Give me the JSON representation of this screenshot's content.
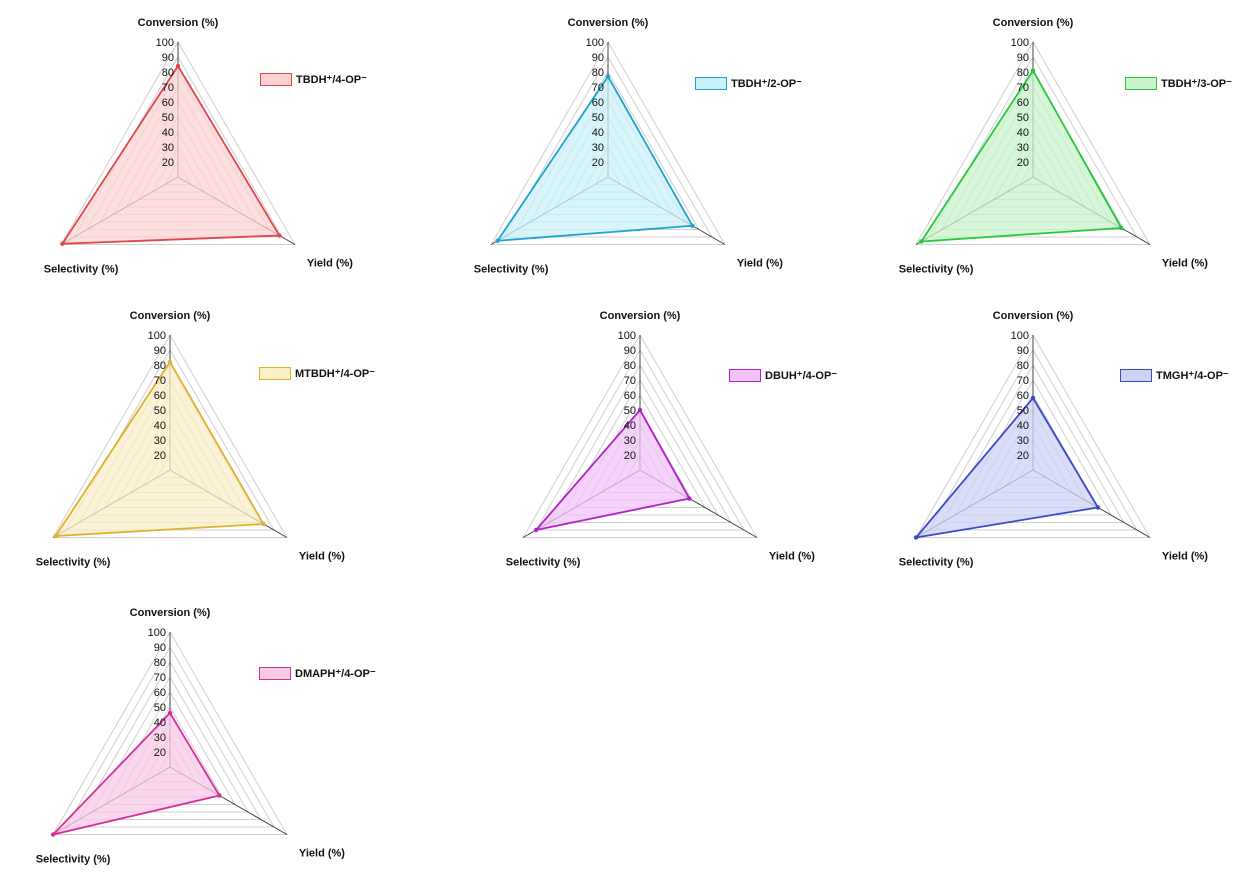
{
  "chart_data": [
    {
      "type": "radar",
      "axes": [
        "Conversion (%)",
        "Yield (%)",
        "Selectivity (%)"
      ],
      "r_ticks": [
        "20",
        "30",
        "40",
        "50",
        "60",
        "70",
        "80",
        "90",
        "100"
      ],
      "rlim": [
        10,
        100
      ],
      "legend": "TBDH⁺/4-OP⁻",
      "series": [
        {
          "name": "TBDH⁺/4-OP⁻",
          "values": [
            84,
            88,
            99
          ]
        }
      ],
      "color": "#e0474c",
      "fill": "#fbd3d3"
    },
    {
      "type": "radar",
      "axes": [
        "Conversion (%)",
        "Yield (%)",
        "Selectivity (%)"
      ],
      "r_ticks": [
        "20",
        "30",
        "40",
        "50",
        "60",
        "70",
        "80",
        "90",
        "100"
      ],
      "rlim": [
        10,
        100
      ],
      "legend": "TBDH⁺/2-OP⁻",
      "series": [
        {
          "name": "TBDH⁺/2-OP⁻",
          "values": [
            77,
            75,
            95
          ]
        }
      ],
      "color": "#1fa3cf",
      "fill": "#c9f1f8"
    },
    {
      "type": "radar",
      "axes": [
        "Conversion (%)",
        "Yield (%)",
        "Selectivity (%)"
      ],
      "r_ticks": [
        "20",
        "30",
        "40",
        "50",
        "60",
        "70",
        "80",
        "90",
        "100"
      ],
      "rlim": [
        10,
        100
      ],
      "legend": "TBDH⁺/3-OP⁻",
      "series": [
        {
          "name": "TBDH⁺/3-OP⁻",
          "values": [
            81,
            78,
            96
          ]
        }
      ],
      "color": "#27c93a",
      "fill": "#c8f3cb"
    },
    {
      "type": "radar",
      "axes": [
        "Conversion (%)",
        "Yield (%)",
        "Selectivity (%)"
      ],
      "r_ticks": [
        "20",
        "30",
        "40",
        "50",
        "60",
        "70",
        "80",
        "90",
        "100"
      ],
      "rlim": [
        10,
        100
      ],
      "legend": "MTBDH⁺/4-OP⁻",
      "series": [
        {
          "name": "MTBDH⁺/4-OP⁻",
          "values": [
            82,
            82,
            98
          ]
        }
      ],
      "color": "#e0b12e",
      "fill": "#fbefc8"
    },
    {
      "type": "radar",
      "axes": [
        "Conversion (%)",
        "Yield (%)",
        "Selectivity (%)"
      ],
      "r_ticks": [
        "20",
        "30",
        "40",
        "50",
        "60",
        "70",
        "80",
        "90",
        "100"
      ],
      "rlim": [
        10,
        100
      ],
      "legend": "DBUH⁺/4-OP⁻",
      "series": [
        {
          "name": "DBUH⁺/4-OP⁻",
          "values": [
            50,
            48,
            90
          ]
        }
      ],
      "color": "#b023c8",
      "fill": "#f0c3f7"
    },
    {
      "type": "radar",
      "axes": [
        "Conversion (%)",
        "Yield (%)",
        "Selectivity (%)"
      ],
      "r_ticks": [
        "20",
        "30",
        "40",
        "50",
        "60",
        "70",
        "80",
        "90",
        "100"
      ],
      "rlim": [
        10,
        100
      ],
      "legend": "TMGH⁺/4-OP⁻",
      "series": [
        {
          "name": "TMGH⁺/4-OP⁻",
          "values": [
            58,
            60,
            100
          ]
        }
      ],
      "color": "#3949c9",
      "fill": "#cdd2f6"
    },
    {
      "type": "radar",
      "axes": [
        "Conversion (%)",
        "Yield (%)",
        "Selectivity (%)"
      ],
      "r_ticks": [
        "20",
        "30",
        "40",
        "50",
        "60",
        "70",
        "80",
        "90",
        "100"
      ],
      "rlim": [
        10,
        100
      ],
      "legend": "DMAPH⁺/4-OP⁻",
      "series": [
        {
          "name": "DMAPH⁺/4-OP⁻",
          "values": [
            46,
            48,
            100
          ]
        }
      ],
      "color": "#d62f9c",
      "fill": "#f9c9e8"
    }
  ]
}
